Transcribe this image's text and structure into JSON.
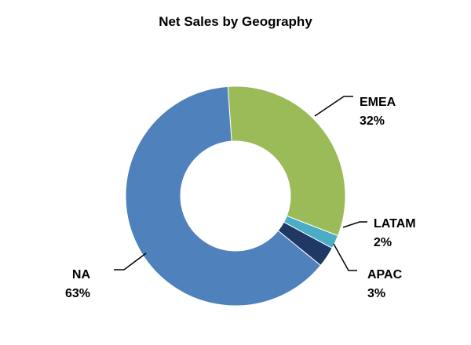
{
  "chart_data": {
    "type": "pie",
    "variant": "donut",
    "title": "Net Sales by Geography",
    "start": "12 o'clock, clockwise, EMEA slightly left of top",
    "slices": [
      {
        "label": "EMEA",
        "value": 32,
        "percent_label": "32%",
        "color": "#9BBB59"
      },
      {
        "label": "LATAM",
        "value": 2,
        "percent_label": "2%",
        "color": "#4BACC6"
      },
      {
        "label": "APAC",
        "value": 3,
        "percent_label": "3%",
        "color": "#1F3864"
      },
      {
        "label": "NA",
        "value": 63,
        "percent_label": "63%",
        "color": "#4F81BD"
      }
    ],
    "legend": "none",
    "data_labels": "outside with leader lines"
  }
}
